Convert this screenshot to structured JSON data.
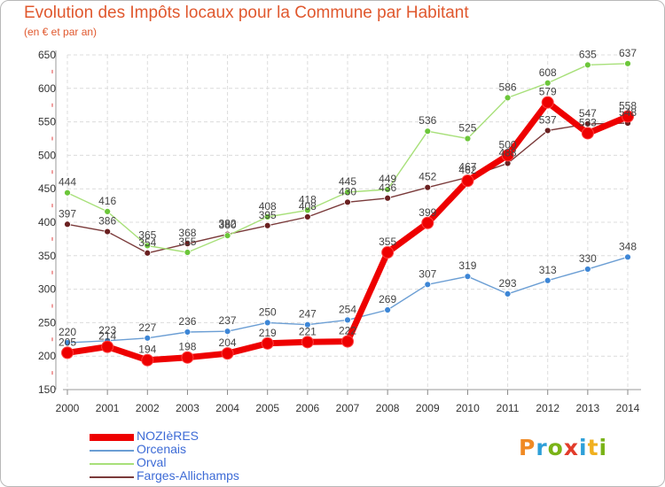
{
  "title": "Evolution des Impôts locaux pour la Commune par Habitant",
  "subtitle": "(en € et par an)",
  "brand": {
    "letters": [
      "P",
      "r",
      "o",
      "x",
      "i",
      "t",
      "i"
    ],
    "colors": [
      "#f08a24",
      "#2e9fd8",
      "#7ab317",
      "#e23b2a",
      "#2e9fd8",
      "#f0b020",
      "#7ab317"
    ]
  },
  "chart_data": {
    "type": "line",
    "x": [
      2000,
      2001,
      2002,
      2003,
      2004,
      2005,
      2006,
      2007,
      2008,
      2009,
      2010,
      2011,
      2012,
      2013,
      2014
    ],
    "ylim": [
      150,
      650
    ],
    "yticks": [
      150,
      200,
      250,
      300,
      350,
      400,
      450,
      500,
      550,
      600,
      650
    ],
    "grid": true,
    "legend_position": "bottom-left",
    "series": [
      {
        "name": "NOZIèRES",
        "color": "#ee0000",
        "marker_color": "#ee0000",
        "values": [
          205,
          214,
          194,
          198,
          204,
          219,
          221,
          222,
          355,
          399,
          462,
          500,
          579,
          533,
          558
        ]
      },
      {
        "name": "Orcenais",
        "color": "#6b9ed4",
        "marker_color": "#3d86d6",
        "values": [
          220,
          223,
          227,
          236,
          237,
          250,
          247,
          254,
          269,
          307,
          319,
          293,
          313,
          330,
          348
        ]
      },
      {
        "name": "Orval",
        "color": "#a8e07a",
        "marker_color": "#6cc63a",
        "values": [
          444,
          416,
          365,
          355,
          380,
          408,
          418,
          445,
          449,
          536,
          525,
          586,
          608,
          635,
          637
        ]
      },
      {
        "name": "Farges-Allichamps",
        "color": "#7a3a3a",
        "marker_color": "#6a2020",
        "values": [
          397,
          386,
          354,
          368,
          382,
          395,
          408,
          430,
          436,
          452,
          467,
          488,
          537,
          547,
          548
        ]
      }
    ]
  }
}
